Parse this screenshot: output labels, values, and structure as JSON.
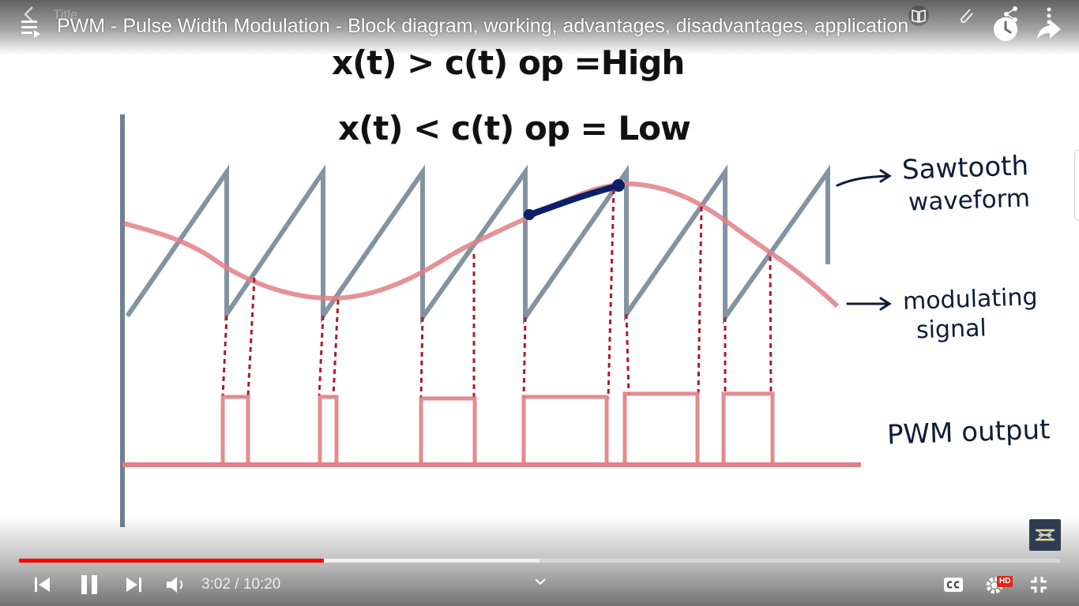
{
  "header": {
    "ghost_title": "Title",
    "video_title": "PWM - Pulse Width Modulation - Block diagram, working, advantages, disadvantages, application"
  },
  "slide": {
    "equation_high": "x(t)  > c(t)    op =High",
    "equation_low": "x(t) < c(t)   op  = Low",
    "label_sawtooth_line1": "Sawtooth",
    "label_sawtooth_line2": "waveform",
    "label_modulating_line1": "modulating",
    "label_modulating_line2": "signal",
    "label_pwm_output": "PWM output"
  },
  "player": {
    "current_time": "3:02",
    "duration": "10:20",
    "time_display": "3:02 / 10:20",
    "progress_fraction": 0.293,
    "buffered_fraction": 0.5,
    "hd_badge": "HD"
  },
  "icons": {
    "back": "back-arrow-icon",
    "menu": "playlist-menu-icon",
    "watch_later": "clock-icon",
    "share": "share-arrow-icon",
    "book": "book-icon",
    "attach": "paperclip-icon",
    "share_small": "share-nodes-icon",
    "more": "more-vertical-icon",
    "prev": "skip-previous-icon",
    "pause": "pause-icon",
    "next": "skip-next-icon",
    "volume": "volume-icon",
    "chevron": "chevron-down-icon",
    "cc": "captions-icon",
    "settings": "settings-gear-icon",
    "exit_fullscreen": "exit-fullscreen-icon",
    "channel_logo": "channel-logo"
  },
  "colors": {
    "accent_progress": "#ff0000",
    "sawtooth": "#6f8091",
    "modulating": "#e07f86",
    "pwm": "#e07f86",
    "dotted": "#b0182a",
    "highlight": "#0b1f6b",
    "ink": "#0f1c36"
  }
}
